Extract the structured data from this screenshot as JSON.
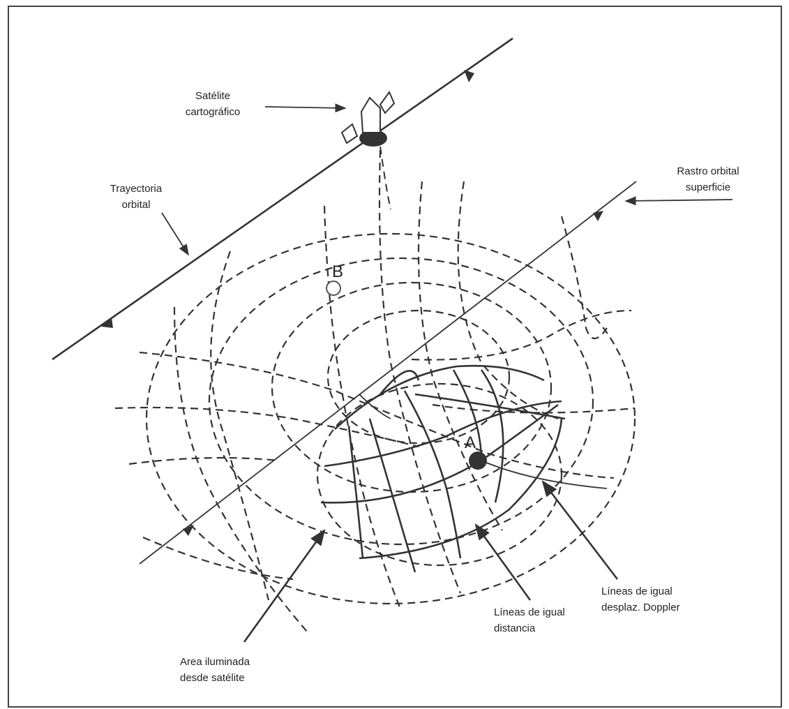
{
  "labels": {
    "satellite": [
      "Satélite",
      "cartográfico"
    ],
    "orbital_path": [
      "Trayectoria",
      "orbital"
    ],
    "ground_track": [
      "Rastro orbital",
      "superficie"
    ],
    "point_a": "A",
    "point_b": "B",
    "doppler_lines": [
      "Líneas de igual",
      "desplaz. Doppler"
    ],
    "range_lines": [
      "Líneas de igual",
      "distancia"
    ],
    "illuminated_area": [
      "Area iluminada",
      "desde satélite"
    ]
  }
}
